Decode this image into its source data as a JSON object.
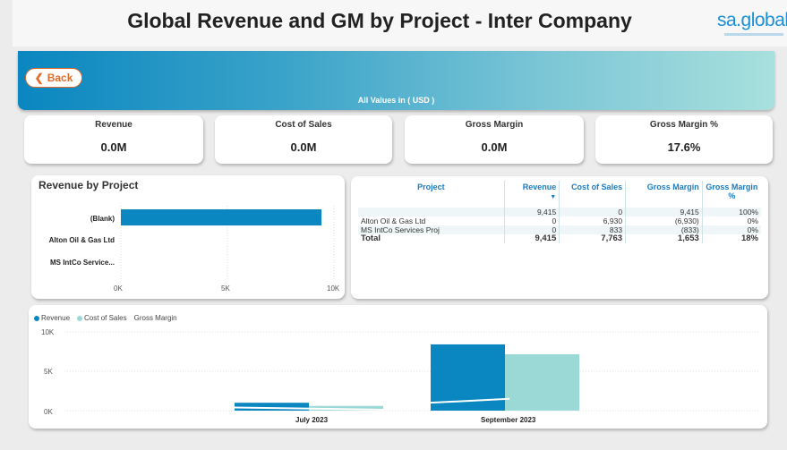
{
  "header": {
    "title": "Global Revenue and GM by Project - Inter Company",
    "logo_text": "sa.global"
  },
  "banner": {
    "back_label": "Back",
    "note": "All Values in ( USD )"
  },
  "kpis": [
    {
      "label": "Revenue",
      "value": "0.0M"
    },
    {
      "label": "Cost of Sales",
      "value": "0.0M"
    },
    {
      "label": "Gross Margin",
      "value": "0.0M"
    },
    {
      "label": "Gross Margin %",
      "value": "17.6%"
    }
  ],
  "rev_by_project": {
    "title": "Revenue by Project",
    "chart_data": {
      "type": "bar",
      "orientation": "horizontal",
      "categories": [
        "(Blank)",
        "Alton Oil & Gas Ltd",
        "MS IntCo Service..."
      ],
      "values": [
        9415,
        0,
        0
      ],
      "xlim": [
        0,
        10000
      ],
      "ticks": [
        "0K",
        "5K",
        "10K"
      ],
      "color": "#0a86c0"
    }
  },
  "table": {
    "headers": [
      "Project",
      "Revenue",
      "Cost of Sales",
      "Gross Margin",
      "Gross Margin %"
    ],
    "rows": [
      [
        "",
        "9,415",
        "0",
        "9,415",
        "100%"
      ],
      [
        "Alton Oil & Gas Ltd",
        "0",
        "6,930",
        "(6,930)",
        "0%"
      ],
      [
        "MS IntCo Services Proj",
        "0",
        "833",
        "(833)",
        "0%"
      ]
    ],
    "total": [
      "Total",
      "9,415",
      "7,763",
      "1,653",
      "18%"
    ]
  },
  "combo": {
    "legend": [
      {
        "name": "Revenue",
        "color": "#0a86c0"
      },
      {
        "name": "Cost of Sales",
        "color": "#9ad9d6"
      },
      {
        "name": "Gross Margin",
        "color": ""
      }
    ],
    "chart_data": {
      "type": "bar",
      "categories": [
        "July 2023",
        "September 2023"
      ],
      "series": [
        {
          "name": "Revenue",
          "values": [
            1000,
            8415
          ]
        },
        {
          "name": "Cost of Sales",
          "values": [
            600,
            7163
          ]
        },
        {
          "name": "Gross Margin",
          "type": "line",
          "values": [
            400,
            1252
          ]
        }
      ],
      "ylim": [
        0,
        10000
      ],
      "yticks": [
        "0K",
        "5K",
        "10K"
      ]
    }
  }
}
